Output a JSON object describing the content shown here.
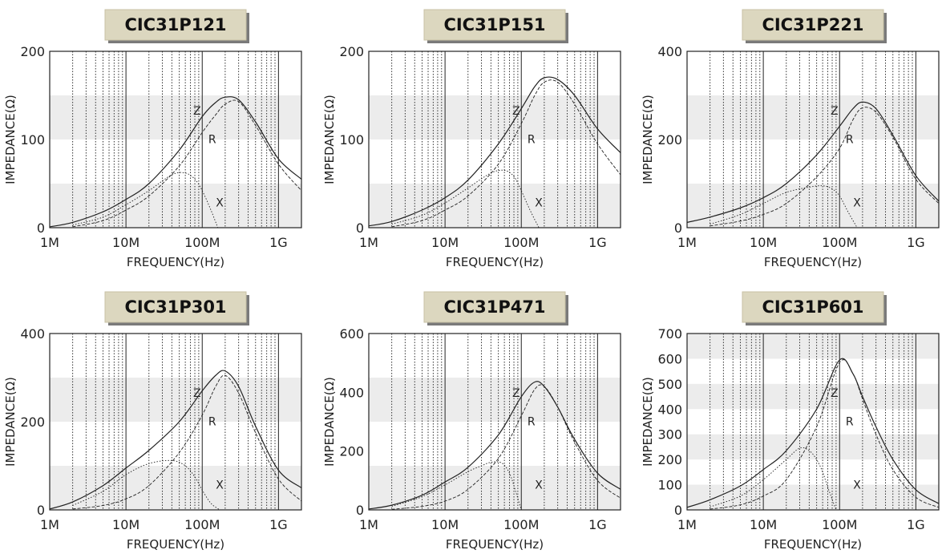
{
  "chart_data": [
    {
      "type": "line",
      "title": "CIC31P121",
      "xlabel": "FREQUENCY(Hz)",
      "ylabel": "IMPEDANCE(Ω)",
      "xscale": "log",
      "xlim": [
        1000000,
        2000000000
      ],
      "x_ticks": [
        "1M",
        "10M",
        "100M",
        "1G"
      ],
      "ylim": [
        0,
        200
      ],
      "y_ticks": [
        0,
        100,
        200
      ],
      "curve_labels": [
        "Z",
        "R",
        "X"
      ],
      "series": [
        {
          "name": "Z",
          "style": "solid",
          "x": [
            1000000,
            2000000,
            5000000,
            10000000,
            20000000,
            50000000,
            100000000,
            150000000,
            200000000,
            300000000,
            500000000,
            1000000000,
            2000000000
          ],
          "values": [
            1,
            6,
            18,
            32,
            50,
            88,
            126,
            142,
            148,
            145,
            120,
            78,
            55
          ]
        },
        {
          "name": "R",
          "style": "dashed",
          "x": [
            2000000,
            5000000,
            10000000,
            20000000,
            50000000,
            100000000,
            150000000,
            200000000,
            300000000,
            500000000,
            1000000000,
            2000000000
          ],
          "values": [
            1,
            8,
            20,
            36,
            70,
            108,
            128,
            140,
            143,
            116,
            72,
            42
          ]
        },
        {
          "name": "X",
          "style": "dotted",
          "x": [
            2000000,
            5000000,
            10000000,
            20000000,
            40000000,
            60000000,
            80000000,
            100000000,
            130000000,
            160000000
          ],
          "values": [
            3,
            12,
            26,
            42,
            60,
            62,
            55,
            42,
            20,
            0
          ]
        }
      ]
    },
    {
      "type": "line",
      "title": "CIC31P151",
      "xlabel": "FREQUENCY(Hz)",
      "ylabel": "IMPEDANCE(Ω)",
      "xscale": "log",
      "xlim": [
        1000000,
        2000000000
      ],
      "x_ticks": [
        "1M",
        "10M",
        "100M",
        "1G"
      ],
      "ylim": [
        0,
        200
      ],
      "y_ticks": [
        0,
        100,
        200
      ],
      "curve_labels": [
        "Z",
        "R",
        "X"
      ],
      "series": [
        {
          "name": "Z",
          "style": "solid",
          "x": [
            1000000,
            2000000,
            5000000,
            10000000,
            20000000,
            50000000,
            100000000,
            150000000,
            200000000,
            300000000,
            500000000,
            1000000000,
            2000000000
          ],
          "values": [
            2,
            7,
            20,
            34,
            54,
            95,
            135,
            160,
            170,
            168,
            150,
            112,
            85
          ]
        },
        {
          "name": "R",
          "style": "dashed",
          "x": [
            2000000,
            5000000,
            10000000,
            20000000,
            50000000,
            100000000,
            150000000,
            200000000,
            300000000,
            500000000,
            1000000000,
            2000000000
          ],
          "values": [
            1,
            8,
            20,
            36,
            72,
            118,
            150,
            165,
            165,
            140,
            95,
            60
          ]
        },
        {
          "name": "X",
          "style": "dotted",
          "x": [
            2000000,
            5000000,
            10000000,
            20000000,
            40000000,
            60000000,
            80000000,
            100000000,
            130000000,
            170000000
          ],
          "values": [
            4,
            14,
            28,
            45,
            62,
            65,
            58,
            42,
            20,
            0
          ]
        }
      ]
    },
    {
      "type": "line",
      "title": "CIC31P221",
      "xlabel": "FREQUENCY(Hz)",
      "ylabel": "IMPEDANCE(Ω)",
      "xscale": "log",
      "xlim": [
        1000000,
        2000000000
      ],
      "x_ticks": [
        "1M",
        "10M",
        "100M",
        "1G"
      ],
      "ylim": [
        0,
        400
      ],
      "y_ticks": [
        0,
        200,
        400
      ],
      "curve_labels": [
        "Z",
        "R",
        "X"
      ],
      "series": [
        {
          "name": "Z",
          "style": "solid",
          "x": [
            1000000,
            2000000,
            5000000,
            10000000,
            20000000,
            50000000,
            100000000,
            150000000,
            200000000,
            300000000,
            500000000,
            1000000000,
            2000000000
          ],
          "values": [
            12,
            24,
            45,
            68,
            100,
            165,
            230,
            270,
            285,
            270,
            210,
            118,
            60
          ]
        },
        {
          "name": "R",
          "style": "dashed",
          "x": [
            2000000,
            5000000,
            10000000,
            20000000,
            50000000,
            100000000,
            150000000,
            200000000,
            300000000,
            500000000,
            1000000000,
            2000000000
          ],
          "values": [
            4,
            15,
            30,
            55,
            115,
            180,
            245,
            272,
            262,
            205,
            110,
            55
          ]
        },
        {
          "name": "X",
          "style": "dotted",
          "x": [
            2000000,
            5000000,
            10000000,
            20000000,
            40000000,
            60000000,
            80000000,
            100000000,
            130000000,
            170000000
          ],
          "values": [
            8,
            30,
            55,
            80,
            92,
            95,
            88,
            72,
            35,
            0
          ]
        }
      ]
    },
    {
      "type": "line",
      "title": "CIC31P301",
      "xlabel": "FREQUENCY(Hz)",
      "ylabel": "IMPEDANCE(Ω)",
      "xscale": "log",
      "xlim": [
        1000000,
        2000000000
      ],
      "x_ticks": [
        "1M",
        "10M",
        "100M",
        "1G"
      ],
      "ylim": [
        0,
        400
      ],
      "y_ticks": [
        0,
        200,
        400
      ],
      "curve_labels": [
        "Z",
        "R",
        "X"
      ],
      "series": [
        {
          "name": "Z",
          "style": "solid",
          "x": [
            1000000,
            2000000,
            5000000,
            10000000,
            20000000,
            50000000,
            100000000,
            150000000,
            200000000,
            300000000,
            500000000,
            1000000000,
            2000000000
          ],
          "values": [
            2,
            18,
            55,
            95,
            135,
            200,
            270,
            305,
            315,
            280,
            190,
            90,
            50
          ]
        },
        {
          "name": "R",
          "style": "dashed",
          "x": [
            2000000,
            5000000,
            10000000,
            20000000,
            50000000,
            100000000,
            150000000,
            200000000,
            300000000,
            500000000,
            1000000000,
            2000000000
          ],
          "values": [
            2,
            10,
            25,
            55,
            130,
            215,
            280,
            305,
            265,
            175,
            70,
            20
          ]
        },
        {
          "name": "X",
          "style": "dotted",
          "x": [
            2000000,
            5000000,
            10000000,
            20000000,
            40000000,
            60000000,
            80000000,
            100000000,
            130000000,
            170000000
          ],
          "values": [
            10,
            42,
            80,
            105,
            112,
            100,
            75,
            45,
            15,
            0
          ]
        }
      ]
    },
    {
      "type": "line",
      "title": "CIC31P471",
      "xlabel": "FREQUENCY(Hz)",
      "ylabel": "IMPEDANCE(Ω)",
      "xscale": "log",
      "xlim": [
        1000000,
        2000000000
      ],
      "x_ticks": [
        "1M",
        "10M",
        "100M",
        "1G"
      ],
      "ylim": [
        0,
        600
      ],
      "y_ticks": [
        0,
        200,
        400,
        600
      ],
      "curve_labels": [
        "Z",
        "R",
        "X"
      ],
      "series": [
        {
          "name": "Z",
          "style": "solid",
          "x": [
            1000000,
            2000000,
            5000000,
            10000000,
            20000000,
            50000000,
            100000000,
            150000000,
            200000000,
            300000000,
            500000000,
            1000000000,
            2000000000
          ],
          "values": [
            3,
            16,
            50,
            95,
            145,
            255,
            385,
            435,
            420,
            350,
            240,
            125,
            70
          ]
        },
        {
          "name": "R",
          "style": "dashed",
          "x": [
            2000000,
            5000000,
            10000000,
            20000000,
            50000000,
            100000000,
            150000000,
            200000000,
            300000000,
            500000000,
            1000000000,
            2000000000
          ],
          "values": [
            2,
            12,
            30,
            70,
            175,
            320,
            410,
            420,
            350,
            230,
            100,
            40
          ]
        },
        {
          "name": "X",
          "style": "dotted",
          "x": [
            2000000,
            5000000,
            10000000,
            20000000,
            30000000,
            40000000,
            55000000,
            70000000,
            85000000,
            100000000
          ],
          "values": [
            12,
            45,
            85,
            130,
            150,
            162,
            160,
            125,
            60,
            0
          ]
        }
      ]
    },
    {
      "type": "line",
      "title": "CIC31P601",
      "xlabel": "FREQUENCY(Hz)",
      "ylabel": "IMPEDANCE(Ω)",
      "xscale": "log",
      "xlim": [
        1000000,
        2000000000
      ],
      "x_ticks": [
        "1M",
        "10M",
        "100M",
        "1G"
      ],
      "ylim": [
        0,
        700
      ],
      "y_ticks": [
        0,
        100,
        200,
        300,
        400,
        500,
        600,
        700
      ],
      "curve_labels": [
        "Z",
        "R",
        "X"
      ],
      "series": [
        {
          "name": "Z",
          "style": "solid",
          "x": [
            1000000,
            2000000,
            5000000,
            10000000,
            20000000,
            50000000,
            100000000,
            150000000,
            200000000,
            300000000,
            500000000,
            1000000000,
            2000000000
          ],
          "values": [
            10,
            40,
            95,
            160,
            235,
            400,
            595,
            540,
            450,
            330,
            200,
            80,
            25
          ]
        },
        {
          "name": "R",
          "style": "dashed",
          "x": [
            2000000,
            5000000,
            10000000,
            20000000,
            50000000,
            100000000,
            150000000,
            200000000,
            300000000,
            500000000,
            1000000000,
            2000000000
          ],
          "values": [
            3,
            20,
            55,
            120,
            330,
            585,
            540,
            440,
            300,
            160,
            50,
            10
          ]
        },
        {
          "name": "X",
          "style": "dotted",
          "x": [
            2000000,
            5000000,
            10000000,
            20000000,
            30000000,
            40000000,
            50000000,
            60000000,
            70000000,
            90000000
          ],
          "values": [
            12,
            55,
            120,
            200,
            245,
            235,
            200,
            150,
            90,
            0
          ]
        }
      ]
    }
  ]
}
